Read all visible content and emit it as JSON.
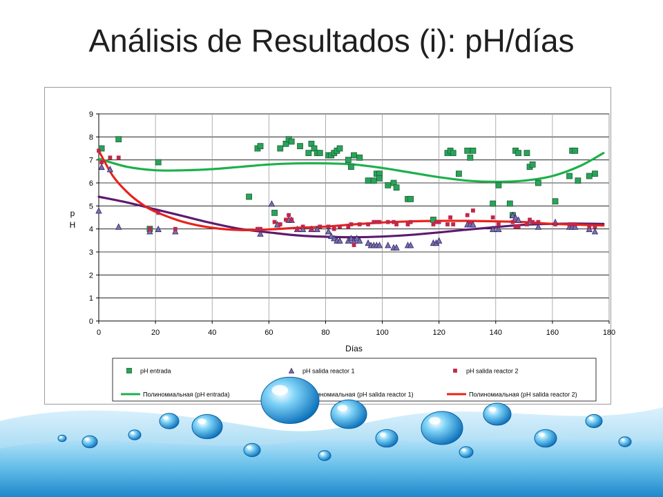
{
  "slide": {
    "title": "Análisis de Resultados (i): pH/días"
  },
  "chart_data": {
    "type": "scatter",
    "title": "",
    "xlabel": "Días",
    "ylabel": "p H",
    "xlim": [
      0,
      180
    ],
    "ylim": [
      0,
      9
    ],
    "x_ticks": [
      "0",
      "20",
      "40",
      "60",
      "80",
      "100",
      "120",
      "140",
      "160",
      "180"
    ],
    "y_ticks": [
      "0",
      "1",
      "2",
      "3",
      "4",
      "5",
      "6",
      "7",
      "8",
      "9"
    ],
    "grid": "horizontal",
    "legend_position": "bottom",
    "colors": {
      "entrada_marker": "#2aa35a",
      "entrada_trend": "#1db04b",
      "r1_marker": "#7b6fb0",
      "r1_trend": "#5e1a6e",
      "r2_marker": "#c0284a",
      "r2_trend": "#e8231b"
    },
    "series": [
      {
        "name": "pH entrada",
        "marker": "square",
        "points": [
          [
            1,
            7.5
          ],
          [
            7,
            7.9
          ],
          [
            18,
            4.0
          ],
          [
            21,
            6.9
          ],
          [
            53,
            5.4
          ],
          [
            56,
            7.5
          ],
          [
            57,
            7.6
          ],
          [
            62,
            4.7
          ],
          [
            64,
            7.5
          ],
          [
            66,
            7.7
          ],
          [
            67,
            7.9
          ],
          [
            68,
            7.8
          ],
          [
            71,
            7.6
          ],
          [
            74,
            7.3
          ],
          [
            75,
            7.7
          ],
          [
            76,
            7.5
          ],
          [
            77,
            7.3
          ],
          [
            78,
            7.3
          ],
          [
            81,
            7.2
          ],
          [
            82,
            7.2
          ],
          [
            83,
            7.3
          ],
          [
            84,
            7.4
          ],
          [
            85,
            7.5
          ],
          [
            88,
            7.0
          ],
          [
            89,
            6.7
          ],
          [
            90,
            7.2
          ],
          [
            92,
            7.1
          ],
          [
            95,
            6.1
          ],
          [
            97,
            6.1
          ],
          [
            98,
            6.4
          ],
          [
            99,
            6.4
          ],
          [
            99,
            6.2
          ],
          [
            102,
            5.9
          ],
          [
            104,
            6.0
          ],
          [
            105,
            5.8
          ],
          [
            109,
            5.3
          ],
          [
            110,
            5.3
          ],
          [
            118,
            4.4
          ],
          [
            123,
            7.3
          ],
          [
            124,
            7.4
          ],
          [
            125,
            7.3
          ],
          [
            127,
            6.4
          ],
          [
            130,
            7.4
          ],
          [
            131,
            7.1
          ],
          [
            132,
            7.4
          ],
          [
            139,
            5.1
          ],
          [
            141,
            5.9
          ],
          [
            145,
            5.1
          ],
          [
            146,
            4.6
          ],
          [
            147,
            7.4
          ],
          [
            148,
            7.3
          ],
          [
            151,
            7.3
          ],
          [
            152,
            6.7
          ],
          [
            153,
            6.8
          ],
          [
            155,
            6.0
          ],
          [
            161,
            5.2
          ],
          [
            166,
            6.3
          ],
          [
            167,
            7.4
          ],
          [
            168,
            7.4
          ],
          [
            169,
            6.1
          ],
          [
            173,
            6.3
          ],
          [
            175,
            6.4
          ]
        ]
      },
      {
        "name": "pH salida reactor 1",
        "marker": "triangle",
        "points": [
          [
            0,
            4.8
          ],
          [
            1,
            6.7
          ],
          [
            4,
            6.6
          ],
          [
            7,
            4.1
          ],
          [
            18,
            3.9
          ],
          [
            21,
            4.0
          ],
          [
            27,
            3.9
          ],
          [
            57,
            3.8
          ],
          [
            61,
            5.1
          ],
          [
            63,
            4.2
          ],
          [
            67,
            4.4
          ],
          [
            68,
            4.4
          ],
          [
            70,
            4.0
          ],
          [
            72,
            4.0
          ],
          [
            75,
            4.0
          ],
          [
            77,
            4.0
          ],
          [
            81,
            3.9
          ],
          [
            82,
            3.7
          ],
          [
            83,
            3.6
          ],
          [
            84,
            3.5
          ],
          [
            85,
            3.5
          ],
          [
            88,
            3.5
          ],
          [
            89,
            3.6
          ],
          [
            90,
            3.5
          ],
          [
            91,
            3.6
          ],
          [
            92,
            3.5
          ],
          [
            95,
            3.4
          ],
          [
            96,
            3.3
          ],
          [
            97,
            3.3
          ],
          [
            98,
            3.3
          ],
          [
            99,
            3.3
          ],
          [
            102,
            3.3
          ],
          [
            104,
            3.2
          ],
          [
            105,
            3.2
          ],
          [
            109,
            3.3
          ],
          [
            110,
            3.3
          ],
          [
            118,
            3.4
          ],
          [
            119,
            3.4
          ],
          [
            120,
            3.5
          ],
          [
            130,
            4.2
          ],
          [
            131,
            4.2
          ],
          [
            132,
            4.2
          ],
          [
            139,
            4.0
          ],
          [
            141,
            4.0
          ],
          [
            146,
            4.6
          ],
          [
            147,
            4.5
          ],
          [
            148,
            4.4
          ],
          [
            152,
            4.3
          ],
          [
            155,
            4.1
          ],
          [
            161,
            4.3
          ],
          [
            166,
            4.1
          ],
          [
            167,
            4.1
          ],
          [
            168,
            4.1
          ],
          [
            173,
            4.0
          ],
          [
            175,
            3.9
          ]
        ]
      },
      {
        "name": "pH salida reactor 2",
        "marker": "small-square",
        "points": [
          [
            0,
            7.4
          ],
          [
            1,
            6.9
          ],
          [
            4,
            7.1
          ],
          [
            7,
            7.1
          ],
          [
            18,
            4.0
          ],
          [
            21,
            4.7
          ],
          [
            27,
            4.0
          ],
          [
            56,
            4.0
          ],
          [
            57,
            4.0
          ],
          [
            62,
            4.3
          ],
          [
            64,
            4.2
          ],
          [
            66,
            4.4
          ],
          [
            67,
            4.6
          ],
          [
            68,
            4.4
          ],
          [
            70,
            4.0
          ],
          [
            72,
            4.1
          ],
          [
            75,
            4.0
          ],
          [
            78,
            4.1
          ],
          [
            81,
            4.1
          ],
          [
            83,
            4.0
          ],
          [
            85,
            4.1
          ],
          [
            88,
            4.1
          ],
          [
            89,
            4.2
          ],
          [
            90,
            3.3
          ],
          [
            92,
            4.2
          ],
          [
            95,
            4.2
          ],
          [
            97,
            4.3
          ],
          [
            98,
            4.3
          ],
          [
            99,
            4.3
          ],
          [
            102,
            4.3
          ],
          [
            104,
            4.3
          ],
          [
            105,
            4.2
          ],
          [
            109,
            4.2
          ],
          [
            110,
            4.3
          ],
          [
            118,
            4.2
          ],
          [
            119,
            4.3
          ],
          [
            120,
            4.3
          ],
          [
            123,
            4.2
          ],
          [
            124,
            4.5
          ],
          [
            125,
            4.2
          ],
          [
            130,
            4.6
          ],
          [
            131,
            4.3
          ],
          [
            132,
            4.8
          ],
          [
            139,
            4.5
          ],
          [
            141,
            4.2
          ],
          [
            146,
            4.3
          ],
          [
            147,
            4.1
          ],
          [
            148,
            4.1
          ],
          [
            151,
            4.2
          ],
          [
            152,
            4.4
          ],
          [
            153,
            4.3
          ],
          [
            155,
            4.3
          ],
          [
            161,
            4.2
          ],
          [
            166,
            4.2
          ],
          [
            167,
            4.2
          ],
          [
            168,
            4.2
          ],
          [
            173,
            4.1
          ],
          [
            175,
            4.1
          ]
        ]
      }
    ],
    "trendlines": [
      {
        "name": "Полиномиальная (pH entrada)",
        "points": [
          [
            0,
            7.05
          ],
          [
            10,
            6.7
          ],
          [
            20,
            6.55
          ],
          [
            30,
            6.55
          ],
          [
            40,
            6.6
          ],
          [
            50,
            6.7
          ],
          [
            60,
            6.8
          ],
          [
            70,
            6.85
          ],
          [
            80,
            6.85
          ],
          [
            90,
            6.8
          ],
          [
            100,
            6.65
          ],
          [
            110,
            6.45
          ],
          [
            120,
            6.25
          ],
          [
            130,
            6.1
          ],
          [
            140,
            6.05
          ],
          [
            150,
            6.1
          ],
          [
            160,
            6.3
          ],
          [
            170,
            6.75
          ],
          [
            178,
            7.3
          ]
        ]
      },
      {
        "name": "Полиномиальная (pH salida reactor 1)",
        "points": [
          [
            0,
            5.4
          ],
          [
            10,
            5.15
          ],
          [
            20,
            4.85
          ],
          [
            30,
            4.55
          ],
          [
            40,
            4.25
          ],
          [
            50,
            4.0
          ],
          [
            60,
            3.85
          ],
          [
            70,
            3.72
          ],
          [
            80,
            3.66
          ],
          [
            90,
            3.64
          ],
          [
            100,
            3.67
          ],
          [
            110,
            3.74
          ],
          [
            120,
            3.85
          ],
          [
            130,
            3.97
          ],
          [
            140,
            4.08
          ],
          [
            150,
            4.18
          ],
          [
            160,
            4.22
          ],
          [
            170,
            4.23
          ],
          [
            178,
            4.22
          ]
        ]
      },
      {
        "name": "Полиномиальная (pH salida reactor 2)",
        "points": [
          [
            0,
            7.4
          ],
          [
            5,
            6.3
          ],
          [
            10,
            5.6
          ],
          [
            15,
            5.1
          ],
          [
            20,
            4.75
          ],
          [
            30,
            4.3
          ],
          [
            40,
            4.05
          ],
          [
            50,
            3.95
          ],
          [
            60,
            3.98
          ],
          [
            70,
            4.05
          ],
          [
            80,
            4.1
          ],
          [
            90,
            4.2
          ],
          [
            100,
            4.28
          ],
          [
            110,
            4.33
          ],
          [
            120,
            4.35
          ],
          [
            130,
            4.35
          ],
          [
            140,
            4.33
          ],
          [
            150,
            4.3
          ],
          [
            160,
            4.22
          ],
          [
            170,
            4.18
          ],
          [
            178,
            4.15
          ]
        ]
      }
    ],
    "legend": [
      {
        "label": "pH entrada",
        "kind": "square"
      },
      {
        "label": "pH salida reactor 1",
        "kind": "triangle"
      },
      {
        "label": "pH salida reactor 2",
        "kind": "small-square"
      },
      {
        "label": "Полиномиальная (pH entrada)",
        "kind": "line"
      },
      {
        "label": "Полиномиальная (pH salida reactor 1)",
        "kind": "line"
      },
      {
        "label": "Полиномиальная (pH salida reactor 2)",
        "kind": "line"
      }
    ]
  }
}
